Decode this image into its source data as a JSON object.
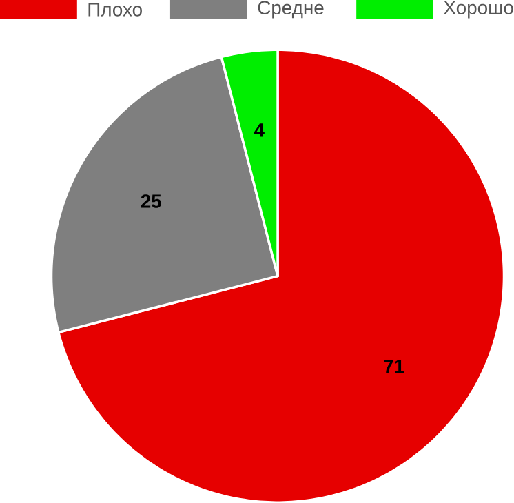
{
  "chart_data": {
    "type": "pie",
    "categories": [
      "Плохо",
      "Средне",
      "Хорошо"
    ],
    "values": [
      71,
      25,
      4
    ],
    "colors": [
      "#e60000",
      "#7f7f7f",
      "#00ee00"
    ],
    "legend": "top",
    "data_labels": true
  }
}
